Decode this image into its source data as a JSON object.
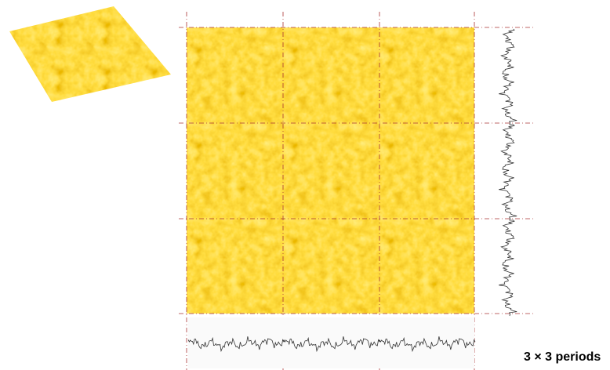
{
  "caption": "3 × 3 periods"
}
